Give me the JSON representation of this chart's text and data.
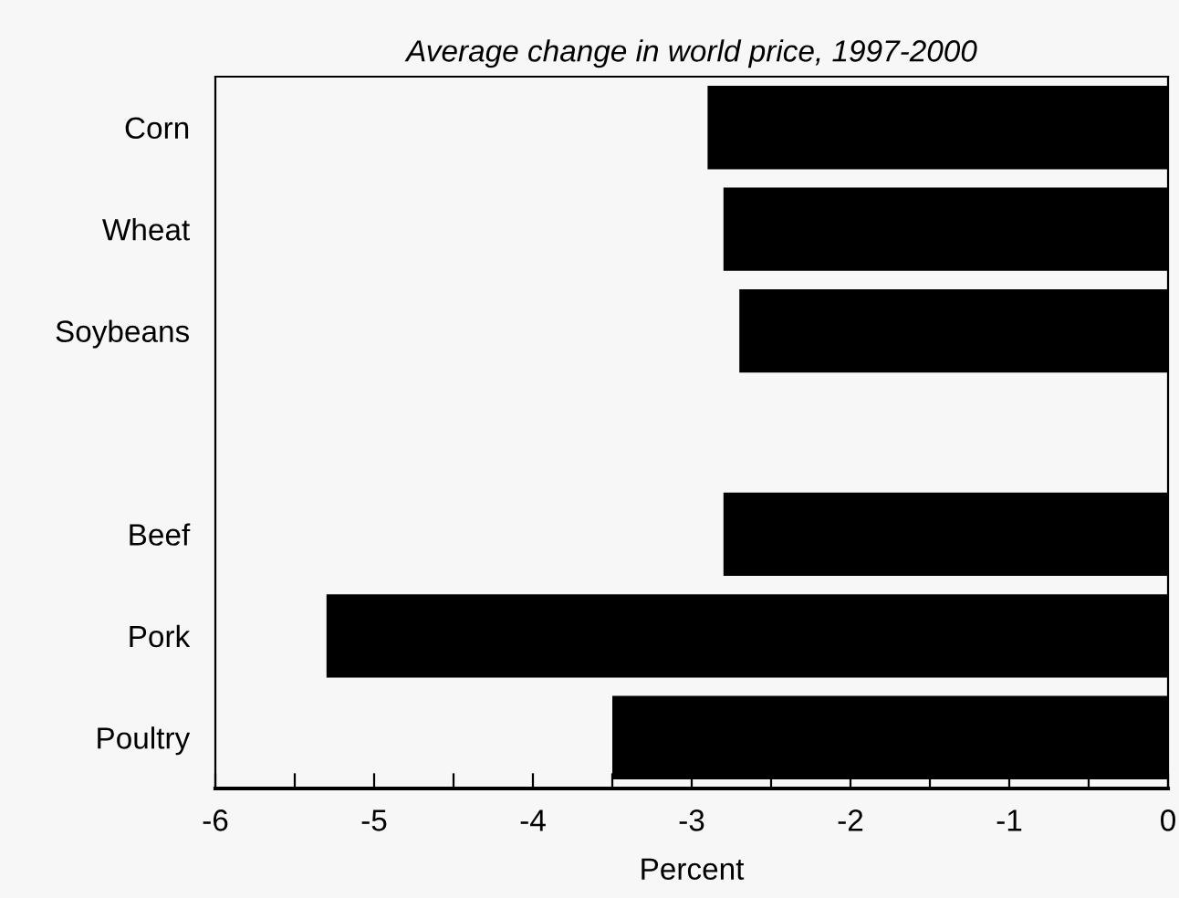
{
  "chart_data": {
    "type": "bar",
    "orientation": "horizontal",
    "title": "Average change in world price, 1997-2000",
    "xlabel": "Percent",
    "categories": [
      "Corn",
      "Wheat",
      "Soybeans",
      null,
      "Beef",
      "Pork",
      "Poultry"
    ],
    "values": [
      -2.9,
      -2.8,
      -2.7,
      null,
      -2.8,
      -5.3,
      -3.5
    ],
    "color": "#000000",
    "xlim": [
      -6,
      0
    ],
    "xticks": [
      -6,
      {
        "value": -5.5,
        "label": null
      },
      -5,
      {
        "value": -4.5,
        "label": null
      },
      -4,
      {
        "value": -3.5,
        "label": null
      },
      -3,
      {
        "value": -2.5,
        "label": null
      },
      -2,
      {
        "value": -1.5,
        "label": null
      },
      -1,
      {
        "value": -0.5,
        "label": null
      },
      0
    ],
    "grid": false,
    "legend": false
  }
}
